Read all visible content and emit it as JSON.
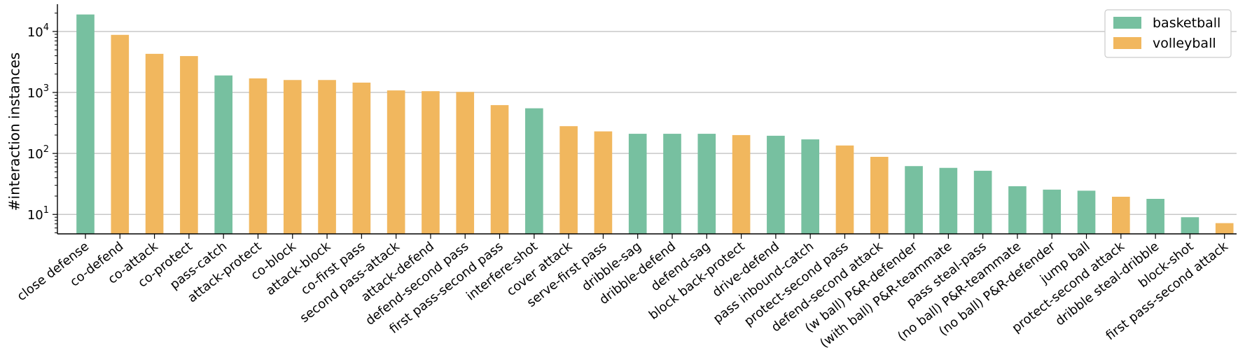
{
  "chart_data": {
    "type": "bar",
    "ylabel": "#interaction instances",
    "yscale": "log",
    "ylim": [
      4.8,
      28000
    ],
    "y_ticks": [
      10,
      100,
      1000,
      10000
    ],
    "grid": "y",
    "legend_position": "top-right",
    "legend": [
      {
        "key": "basketball",
        "label": "basketball",
        "color": "#77c0a0"
      },
      {
        "key": "volleyball",
        "label": "volleyball",
        "color": "#f1b75e"
      }
    ],
    "categories": [
      "close defense",
      "co-defend",
      "co-attack",
      "co-protect",
      "pass-catch",
      "attack-protect",
      "co-block",
      "attack-block",
      "co-first pass",
      "second pass-attack",
      "attack-defend",
      "defend-second pass",
      "first pass-second pass",
      "interfere-shot",
      "cover attack",
      "serve-first pass",
      "dribble-sag",
      "dribble-defend",
      "defend-sag",
      "block back-protect",
      "drive-defend",
      "pass inbound-catch",
      "protect-second pass",
      "defend-second attack",
      "(w ball) P&R-defender",
      "(with ball) P&R-teammate",
      "pass steal-pass",
      "(no ball) P&R-teammate",
      "(no ball) P&R-defender",
      "jump ball",
      "protect-second attack",
      "dribble steal-dribble",
      "block-shot",
      "first pass-second attack"
    ],
    "values": [
      19000,
      8800,
      4300,
      3950,
      1900,
      1700,
      1600,
      1600,
      1450,
      1080,
      1050,
      1020,
      620,
      550,
      280,
      230,
      210,
      210,
      210,
      200,
      195,
      170,
      135,
      88,
      62,
      58,
      52,
      29,
      25.5,
      24.5,
      19.5,
      18,
      9,
      7.2
    ],
    "groups": [
      "basketball",
      "volleyball",
      "volleyball",
      "volleyball",
      "basketball",
      "volleyball",
      "volleyball",
      "volleyball",
      "volleyball",
      "volleyball",
      "volleyball",
      "volleyball",
      "volleyball",
      "basketball",
      "volleyball",
      "volleyball",
      "basketball",
      "basketball",
      "basketball",
      "volleyball",
      "basketball",
      "basketball",
      "volleyball",
      "volleyball",
      "basketball",
      "basketball",
      "basketball",
      "basketball",
      "basketball",
      "basketball",
      "volleyball",
      "basketball",
      "basketball",
      "volleyball"
    ]
  }
}
